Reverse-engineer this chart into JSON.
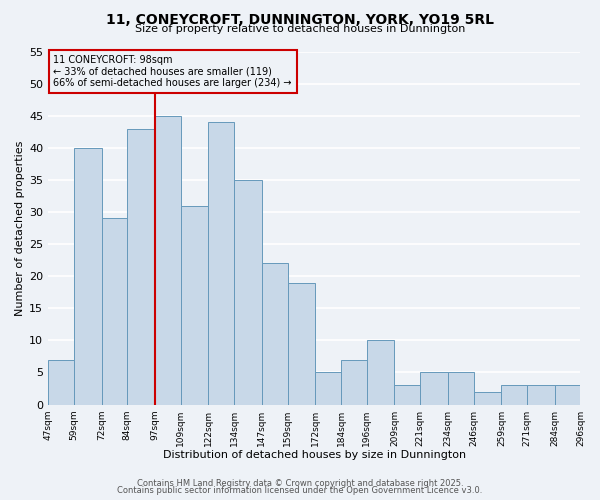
{
  "title1": "11, CONEYCROFT, DUNNINGTON, YORK, YO19 5RL",
  "title2": "Size of property relative to detached houses in Dunnington",
  "xlabel": "Distribution of detached houses by size in Dunnington",
  "ylabel": "Number of detached properties",
  "bin_edges": [
    47,
    59,
    72,
    84,
    97,
    109,
    122,
    134,
    147,
    159,
    172,
    184,
    196,
    209,
    221,
    234,
    246,
    259,
    271,
    284,
    296
  ],
  "bin_labels": [
    "47sqm",
    "59sqm",
    "72sqm",
    "84sqm",
    "97sqm",
    "109sqm",
    "122sqm",
    "134sqm",
    "147sqm",
    "159sqm",
    "172sqm",
    "184sqm",
    "196sqm",
    "209sqm",
    "221sqm",
    "234sqm",
    "246sqm",
    "259sqm",
    "271sqm",
    "284sqm",
    "296sqm"
  ],
  "counts": [
    7,
    40,
    29,
    43,
    45,
    31,
    44,
    35,
    22,
    19,
    5,
    7,
    10,
    3,
    5,
    5,
    2,
    3,
    3,
    3
  ],
  "bar_color": "#c8d8e8",
  "bar_edgecolor": "#6699bb",
  "vline_x": 97,
  "vline_color": "#cc0000",
  "annotation_title": "11 CONEYCROFT: 98sqm",
  "annotation_line1": "← 33% of detached houses are smaller (119)",
  "annotation_line2": "66% of semi-detached houses are larger (234) →",
  "box_edgecolor": "#cc0000",
  "ylim": [
    0,
    55
  ],
  "yticks": [
    0,
    5,
    10,
    15,
    20,
    25,
    30,
    35,
    40,
    45,
    50,
    55
  ],
  "bg_color": "#eef2f7",
  "grid_color": "#ffffff",
  "footer1": "Contains HM Land Registry data © Crown copyright and database right 2025.",
  "footer2": "Contains public sector information licensed under the Open Government Licence v3.0."
}
